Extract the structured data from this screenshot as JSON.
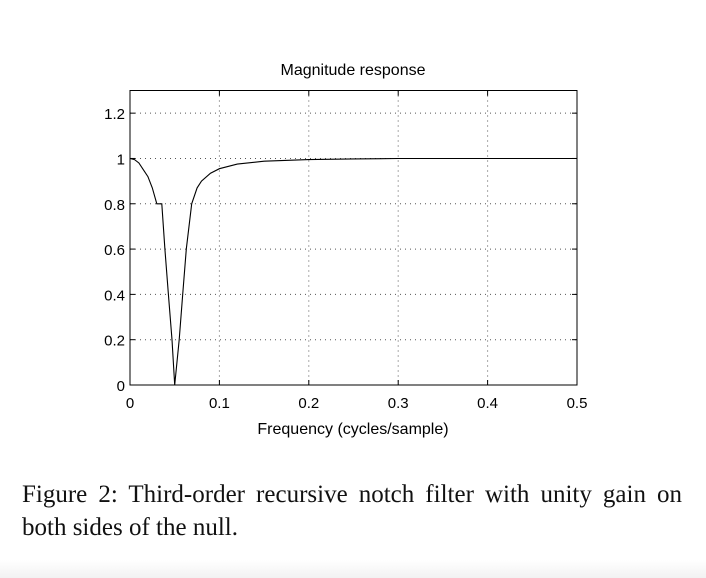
{
  "chart_data": {
    "type": "line",
    "title": "Magnitude response",
    "xlabel": "Frequency (cycles/sample)",
    "ylabel": "",
    "xlim": [
      0,
      0.5
    ],
    "ylim": [
      0,
      1.3
    ],
    "xticks": [
      0,
      0.1,
      0.2,
      0.3,
      0.4,
      0.5
    ],
    "xtick_labels": [
      "0",
      "0.1",
      "0.2",
      "0.3",
      "0.4",
      "0.5"
    ],
    "yticks": [
      0,
      0.2,
      0.4,
      0.6,
      0.8,
      1,
      1.2
    ],
    "ytick_labels": [
      "0",
      "0.2",
      "0.4",
      "0.6",
      "0.8",
      "1",
      "1.2"
    ],
    "grid": true,
    "line_color": "#000000",
    "series": [
      {
        "x": [
          0,
          0.005,
          0.01,
          0.015,
          0.02,
          0.025,
          0.03,
          0.0356,
          0.039,
          0.043,
          0.047,
          0.05,
          0.055,
          0.059,
          0.063,
          0.069,
          0.075,
          0.08,
          0.09,
          0.1,
          0.12,
          0.15,
          0.2,
          0.25,
          0.3,
          0.4,
          0.5
        ],
        "y": [
          1,
          0.995,
          0.98,
          0.95,
          0.92,
          0.87,
          0.8,
          0.8,
          0.6,
          0.4,
          0.2,
          0,
          0.2,
          0.4,
          0.6,
          0.8,
          0.87,
          0.9,
          0.935,
          0.955,
          0.975,
          0.988,
          0.995,
          0.998,
          1,
          1,
          1
        ]
      }
    ]
  },
  "caption": "Figure 2:  Third-order recursive notch filter with unity gain on both sides of the null."
}
